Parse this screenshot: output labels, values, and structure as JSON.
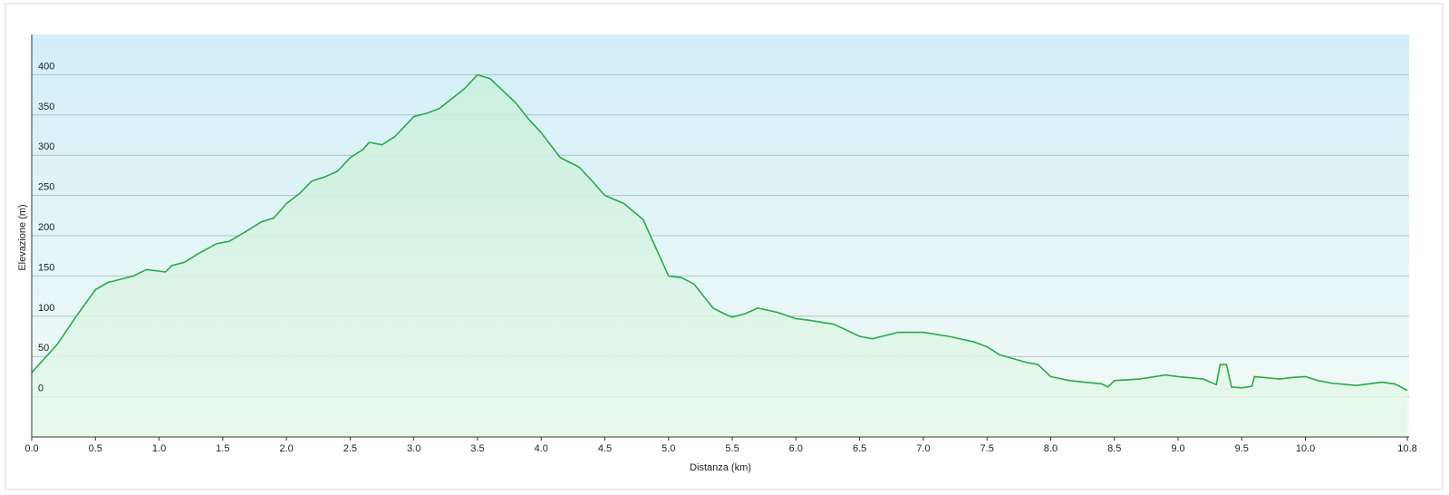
{
  "chart_data": {
    "type": "area",
    "xlabel": "Distanza  (km)",
    "ylabel": "Elevazione (m)",
    "color": "#2aa84a",
    "x": [
      0,
      0.2,
      0.35,
      0.5,
      0.6,
      0.8,
      0.9,
      1.05,
      1.1,
      1.2,
      1.3,
      1.45,
      1.55,
      1.7,
      1.8,
      1.9,
      2.0,
      2.1,
      2.2,
      2.3,
      2.4,
      2.5,
      2.6,
      2.65,
      2.75,
      2.85,
      3.0,
      3.1,
      3.2,
      3.4,
      3.5,
      3.6,
      3.8,
      3.9,
      4.0,
      4.15,
      4.3,
      4.4,
      4.5,
      4.65,
      4.8,
      4.9,
      5.0,
      5.1,
      5.2,
      5.3,
      5.35,
      5.45,
      5.5,
      5.6,
      5.7,
      5.85,
      6.0,
      6.1,
      6.3,
      6.5,
      6.6,
      6.8,
      7.0,
      7.2,
      7.4,
      7.5,
      7.6,
      7.8,
      7.9,
      8.0,
      8.15,
      8.4,
      8.45,
      8.5,
      8.7,
      8.9,
      9.0,
      9.2,
      9.3,
      9.33,
      9.38,
      9.42,
      9.5,
      9.58,
      9.6,
      9.8,
      9.9,
      10.0,
      10.1,
      10.2,
      10.4,
      10.6,
      10.7,
      10.8
    ],
    "values": [
      30,
      65,
      100,
      133,
      142,
      150,
      158,
      155,
      163,
      167,
      177,
      190,
      193,
      207,
      217,
      222,
      240,
      252,
      268,
      273,
      280,
      297,
      307,
      316,
      313,
      323,
      348,
      352,
      358,
      383,
      400,
      395,
      365,
      345,
      328,
      297,
      285,
      268,
      250,
      240,
      220,
      185,
      150,
      148,
      140,
      120,
      110,
      102,
      99,
      103,
      110,
      105,
      97,
      95,
      90,
      75,
      72,
      80,
      80,
      75,
      68,
      62,
      52,
      43,
      40,
      25,
      20,
      16,
      12,
      20,
      22,
      27,
      25,
      22,
      15,
      40,
      40,
      12,
      11,
      13,
      25,
      22,
      24,
      25,
      20,
      17,
      14,
      18,
      16,
      8
    ],
    "xlim": [
      0,
      10.8
    ],
    "ylim": [
      -50,
      450
    ],
    "xticks": [
      {
        "value": 0,
        "label": "0.0"
      },
      0.5,
      {
        "value": 1,
        "label": "1.0"
      },
      1.5,
      {
        "value": 2,
        "label": "2.0"
      },
      2.5,
      {
        "value": 3,
        "label": "3.0"
      },
      3.5,
      {
        "value": 4,
        "label": "4.0"
      },
      4.5,
      {
        "value": 5,
        "label": "5.0"
      },
      5.5,
      {
        "value": 6,
        "label": "6.0"
      },
      6.5,
      {
        "value": 7,
        "label": "7.0"
      },
      7.5,
      {
        "value": 8,
        "label": "8.0"
      },
      8.5,
      {
        "value": 9,
        "label": "9.0"
      },
      9.5,
      {
        "value": 10,
        "label": "10.0"
      },
      10.8
    ],
    "yticks": [
      0,
      50,
      100,
      150,
      200,
      250,
      300,
      350,
      400
    ],
    "grid": true
  }
}
